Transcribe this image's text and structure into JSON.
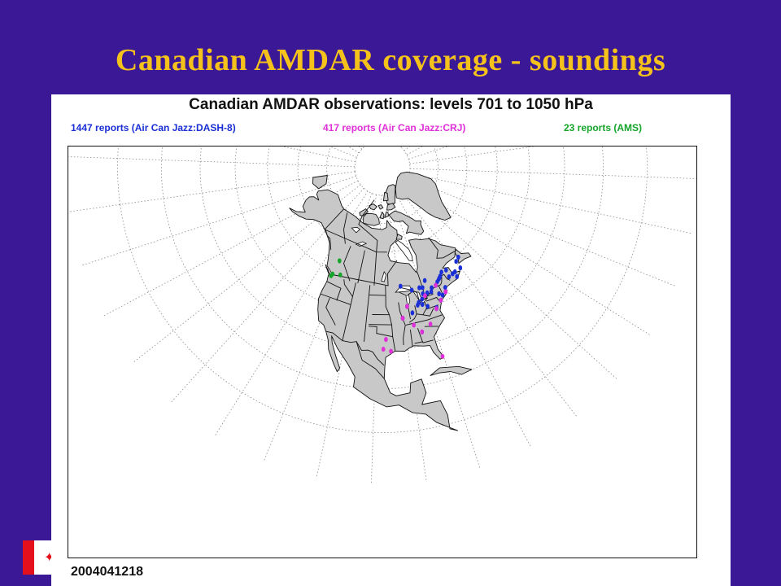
{
  "slide": {
    "title": "Canadian AMDAR coverage - soundings",
    "background_color": "#3a1896",
    "title_color": "#f5c21b"
  },
  "logo": {
    "name": "canada-flag-icon"
  },
  "map": {
    "title": "Canadian AMDAR observations:  levels 701 to 1050 hPa",
    "valid_time": "2004041218",
    "legend": [
      {
        "label": "1447 reports (Air Can Jazz:DASH-8)",
        "color": "#1a2fd6"
      },
      {
        "label": "417 reports (Air Can Jazz:CRJ)",
        "color": "#e02fd8"
      },
      {
        "label": "23 reports (AMS)",
        "color": "#15a52a"
      }
    ],
    "land_color": "#c8c8c8",
    "projection": "polar stereographic",
    "observations": {
      "dash8": [
        [
          -70.6,
          47.1
        ],
        [
          -71.2,
          46.8
        ],
        [
          -68.5,
          48.4
        ],
        [
          -66.1,
          48.2
        ],
        [
          -64.5,
          46.1
        ],
        [
          -63.6,
          44.6
        ],
        [
          -63.1,
          46.2
        ],
        [
          -60.1,
          46.2
        ],
        [
          -59.8,
          48.6
        ],
        [
          -57.7,
          49.2
        ],
        [
          -66.6,
          45.9
        ],
        [
          -69.9,
          47.5
        ],
        [
          -72.3,
          46.3
        ],
        [
          -73.6,
          45.5
        ],
        [
          -75.7,
          45.3
        ],
        [
          -76.5,
          44.2
        ],
        [
          -78.3,
          44.3
        ],
        [
          -79.6,
          43.7
        ],
        [
          -80.2,
          44.5
        ],
        [
          -81.2,
          43.0
        ],
        [
          -82.9,
          42.3
        ],
        [
          -84.5,
          46.5
        ],
        [
          -80.9,
          46.6
        ],
        [
          -79.5,
          46.3
        ],
        [
          -89.3,
          48.4
        ],
        [
          -77.4,
          48.2
        ],
        [
          -73.8,
          42.7
        ],
        [
          -74.2,
          40.7
        ],
        [
          -71.0,
          42.4
        ],
        [
          -76.8,
          39.2
        ],
        [
          -77.0,
          38.9
        ],
        [
          -84.4,
          33.7
        ],
        [
          -87.9,
          41.9
        ],
        [
          -83.6,
          41.6
        ],
        [
          -79.9,
          40.4
        ],
        [
          -81.7,
          41.4
        ],
        [
          -90.3,
          38.6
        ],
        [
          -86.3,
          39.7
        ],
        [
          -70.3,
          43.6
        ],
        [
          -72.7,
          41.9
        ]
      ],
      "crj": [
        [
          -79.6,
          43.7
        ],
        [
          -77.0,
          38.9
        ],
        [
          -74.2,
          40.7
        ],
        [
          -71.0,
          42.4
        ],
        [
          -87.9,
          41.9
        ],
        [
          -84.4,
          33.7
        ],
        [
          -80.9,
          35.2
        ],
        [
          -90.3,
          38.6
        ],
        [
          -96.8,
          32.9
        ],
        [
          -95.3,
          29.6
        ],
        [
          -97.7,
          30.2
        ],
        [
          -86.7,
          36.1
        ],
        [
          -73.6,
          45.5
        ],
        [
          -80.3,
          25.8
        ]
      ],
      "ams": [
        [
          -123.1,
          49.2
        ],
        [
          -123.4,
          48.5
        ],
        [
          -119.4,
          49.9
        ],
        [
          -122.7,
          54.0
        ]
      ]
    }
  }
}
